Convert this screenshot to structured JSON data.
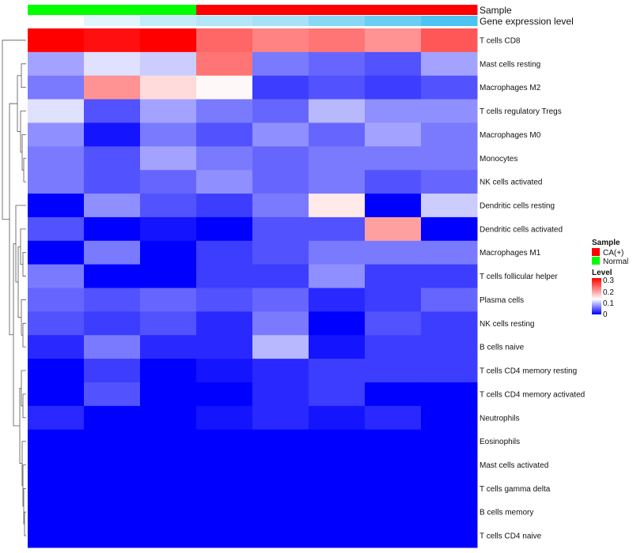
{
  "chart_data": {
    "type": "heatmap",
    "annotations": {
      "sample_label": "Sample",
      "gene_label": "Gene expression level",
      "sample_groups": [
        "Normal",
        "Normal",
        "Normal",
        "CA(+)",
        "CA(+)",
        "CA(+)",
        "CA(+)",
        "CA(+)"
      ],
      "gene_levels": [
        0.0,
        0.02,
        0.04,
        0.05,
        0.06,
        0.08,
        0.1,
        0.12
      ]
    },
    "rows": [
      "T cells CD8",
      "Mast cells resting",
      "Macrophages M2",
      "T cells regulatory  Tregs",
      "Macrophages M0",
      "Monocytes",
      "NK cells activated",
      "Dendritic cells resting",
      "Dendritic cells activated",
      "Macrophages M1",
      "T cells follicular helper",
      "Plasma cells",
      "NK cells resting",
      "B cells naive",
      "T cells CD4 memory resting",
      "T cells CD4 memory activated",
      "Neutrophils",
      "Eosinophils",
      "Mast cells activated",
      "T cells gamma delta",
      "B cells memory",
      "T cells CD4 naive"
    ],
    "values": [
      [
        0.3,
        0.29,
        0.3,
        0.23,
        0.21,
        0.22,
        0.2,
        0.24
      ],
      [
        0.08,
        0.11,
        0.1,
        0.22,
        0.06,
        0.05,
        0.04,
        0.08
      ],
      [
        0.06,
        0.2,
        0.15,
        0.13,
        0.03,
        0.04,
        0.03,
        0.04
      ],
      [
        0.11,
        0.04,
        0.08,
        0.06,
        0.05,
        0.09,
        0.07,
        0.07
      ],
      [
        0.07,
        0.01,
        0.06,
        0.04,
        0.07,
        0.05,
        0.08,
        0.06
      ],
      [
        0.06,
        0.04,
        0.08,
        0.06,
        0.05,
        0.06,
        0.06,
        0.06
      ],
      [
        0.06,
        0.04,
        0.05,
        0.07,
        0.05,
        0.06,
        0.04,
        0.05
      ],
      [
        0.0,
        0.07,
        0.04,
        0.03,
        0.06,
        0.14,
        0.0,
        0.1
      ],
      [
        0.04,
        0.0,
        0.01,
        0.0,
        0.04,
        0.04,
        0.19,
        0.0
      ],
      [
        0.0,
        0.06,
        0.0,
        0.03,
        0.04,
        0.06,
        0.06,
        0.06
      ],
      [
        0.06,
        0.0,
        0.0,
        0.03,
        0.03,
        0.07,
        0.03,
        0.03
      ],
      [
        0.05,
        0.04,
        0.05,
        0.04,
        0.05,
        0.02,
        0.03,
        0.05
      ],
      [
        0.04,
        0.03,
        0.04,
        0.02,
        0.06,
        0.0,
        0.04,
        0.03
      ],
      [
        0.02,
        0.06,
        0.02,
        0.02,
        0.09,
        0.01,
        0.03,
        0.03
      ],
      [
        0.0,
        0.03,
        0.0,
        0.01,
        0.02,
        0.03,
        0.03,
        0.03
      ],
      [
        0.0,
        0.04,
        0.0,
        0.0,
        0.02,
        0.03,
        0.0,
        0.0
      ],
      [
        0.02,
        0.0,
        0.0,
        0.01,
        0.02,
        0.01,
        0.02,
        0.0
      ],
      [
        0.0,
        0.0,
        0.0,
        0.0,
        0.0,
        0.0,
        0.0,
        0.0
      ],
      [
        0.0,
        0.0,
        0.0,
        0.0,
        0.0,
        0.0,
        0.0,
        0.0
      ],
      [
        0.0,
        0.0,
        0.0,
        0.0,
        0.0,
        0.0,
        0.0,
        0.0
      ],
      [
        0.0,
        0.0,
        0.0,
        0.0,
        0.0,
        0.0,
        0.0,
        0.0
      ],
      [
        0.0,
        0.0,
        0.0,
        0.0,
        0.0,
        0.0,
        0.0,
        0.0
      ]
    ],
    "color_scale": {
      "min": 0.0,
      "max": 0.3,
      "low_color": "#0000ff",
      "mid_color": "#ffffff",
      "high_color": "#ff0000",
      "mid_value": 0.125
    },
    "gene_scale": {
      "min": 0.0,
      "max": 0.12,
      "low_color": "#ffffff",
      "high_color": "#4cc3f0"
    },
    "legend": {
      "sample_title": "Sample",
      "sample_items": [
        {
          "label": "CA(+)",
          "color": "#ff0000"
        },
        {
          "label": "Normal",
          "color": "#00ff00"
        }
      ],
      "level_title": "Level",
      "level_ticks": [
        "0.3",
        "0.2",
        "0.1",
        "0"
      ],
      "level_tick_values": [
        0.3,
        0.2,
        0.1,
        0.0
      ]
    },
    "legend_position": "right"
  }
}
